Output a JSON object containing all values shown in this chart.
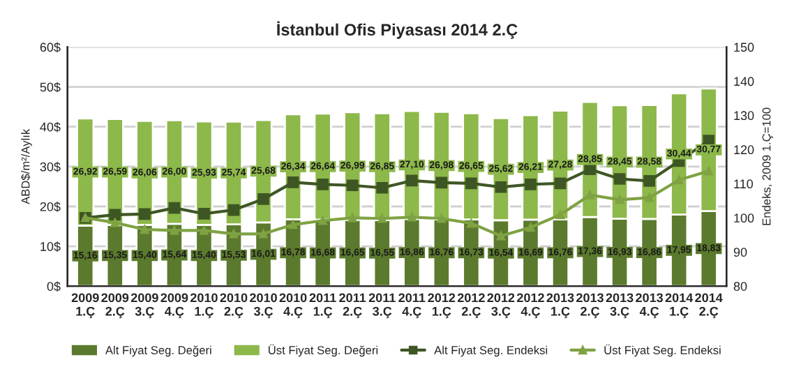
{
  "chart_data": {
    "type": "bar",
    "title": "İstanbul Ofis Piyasası 2014 2.Ç",
    "ylabel": "ABD$/m²/Aylık",
    "y2label": "Endeks, 2009 1.Ç=100",
    "categories": [
      "2009\n1.Ç",
      "2009\n2.Ç",
      "2009\n3.Ç",
      "2009\n4.Ç",
      "2010\n1.Ç",
      "2010\n2.Ç",
      "2010\n3.Ç",
      "2010\n4.Ç",
      "2011\n1.Ç",
      "2011\n2.Ç",
      "2011\n3.Ç",
      "2011\n4.Ç",
      "2012\n1.Ç",
      "2012\n2.Ç",
      "2012\n3.Ç",
      "2012\n4.Ç",
      "2013\n1.Ç",
      "2013\n2.Ç",
      "2013\n3.Ç",
      "2013\n4.Ç",
      "2014\n1.Ç",
      "2014\n2.Ç"
    ],
    "stacked": true,
    "series": [
      {
        "name": "Alt Fiyat Seg. Değeri",
        "color": "#5b7a2d",
        "values": [
          15.16,
          15.35,
          15.4,
          15.64,
          15.4,
          15.53,
          16.01,
          16.78,
          16.68,
          16.65,
          16.55,
          16.86,
          16.76,
          16.73,
          16.54,
          16.69,
          16.76,
          17.36,
          16.93,
          16.86,
          17.95,
          18.83
        ],
        "value_labels": [
          "15,16",
          "15,35",
          "15,40",
          "15,64",
          "15,40",
          "15,53",
          "16,01",
          "16,78",
          "16,68",
          "16,65",
          "16,55",
          "16,86",
          "16,76",
          "16,73",
          "16,54",
          "16,69",
          "16,76",
          "17,36",
          "16,93",
          "16,86",
          "17,95",
          "18,83"
        ]
      },
      {
        "name": "Üst Fiyat Seg. Değeri",
        "color": "#8db84a",
        "values": [
          26.92,
          26.59,
          26.06,
          26.0,
          25.93,
          25.74,
          25.68,
          26.34,
          26.64,
          26.99,
          26.85,
          27.1,
          26.98,
          26.65,
          25.62,
          26.21,
          27.28,
          28.85,
          28.45,
          28.58,
          30.44,
          30.77
        ],
        "value_labels": [
          "26,92",
          "26,59",
          "26,06",
          "26,00",
          "25,93",
          "25,74",
          "25,68",
          "26,34",
          "26,64",
          "26,99",
          "26,85",
          "27,10",
          "26,98",
          "26,65",
          "25,62",
          "26,21",
          "27,28",
          "28,85",
          "28,45",
          "28,58",
          "30,44",
          "30,77"
        ]
      },
      {
        "name": "Alt Fiyat Seg. Endeksi",
        "type": "line",
        "axis": "y2",
        "marker": "square",
        "color": "#3e5624",
        "values": [
          100,
          100.9,
          101.1,
          102.9,
          101.2,
          102.3,
          105.5,
          110.4,
          109.8,
          109.5,
          108.8,
          110.9,
          110.3,
          110.1,
          109.0,
          109.8,
          110.1,
          114.2,
          111.4,
          110.8,
          116.6,
          122.6
        ]
      },
      {
        "name": "Üst Fiyat Seg. Endeksi",
        "type": "line",
        "axis": "y2",
        "marker": "triangle",
        "color": "#7fa243",
        "values": [
          100,
          98.6,
          96.6,
          96.3,
          96.3,
          95.3,
          95.3,
          98.0,
          99.2,
          100.0,
          99.8,
          100.2,
          99.8,
          98.4,
          94.7,
          97.2,
          100.9,
          106.7,
          105.3,
          105.9,
          111.1,
          113.7
        ]
      }
    ],
    "ylim": [
      0,
      60
    ],
    "yticks": [
      {
        "value": 0,
        "label": "0$"
      },
      {
        "value": 10,
        "label": "10$"
      },
      {
        "value": 20,
        "label": "20$"
      },
      {
        "value": 30,
        "label": "30$"
      },
      {
        "value": 40,
        "label": "40$"
      },
      {
        "value": 50,
        "label": "50$"
      },
      {
        "value": 60,
        "label": "60$"
      }
    ],
    "y2lim": [
      80,
      150
    ],
    "y2ticks": [
      80,
      90,
      100,
      110,
      120,
      130,
      140,
      150
    ],
    "grid": "y",
    "legend": "bottom",
    "line_style": "solid"
  }
}
